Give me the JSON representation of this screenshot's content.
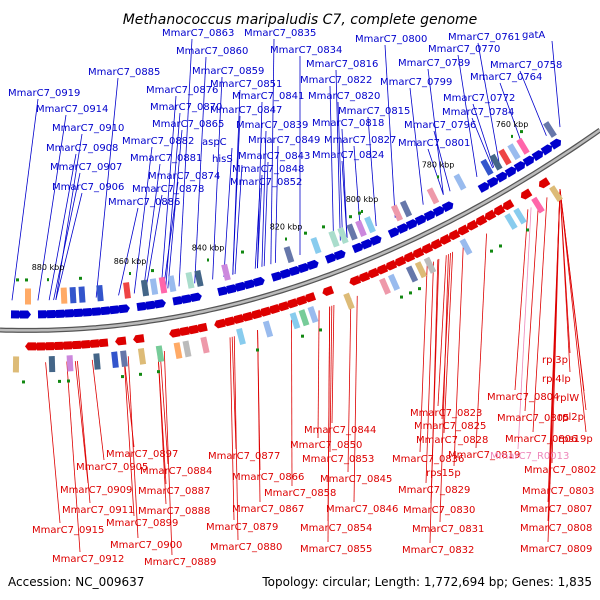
{
  "title": "Methanococcus maripaludis C7, complete genome",
  "footer": {
    "accession": "Accession: NC_009637",
    "summary": "Topology: circular; Length: 1,772,694 bp; Genes: 1,835"
  },
  "colors": {
    "forward": "#0000cc",
    "reverse": "#dd0000",
    "rna": "#ee88bb",
    "backbone": "#888888",
    "tick": "#118811"
  },
  "ticks": [
    "880 kbp",
    "860 kbp",
    "840 kbp",
    "820 kbp",
    "800 kbp",
    "780 kbp",
    "760 kbp"
  ],
  "top_labels": [
    "MmarC7_0863",
    "MmarC7_0835",
    "MmarC7_0800",
    "MmarC7_0761",
    "gatA",
    "MmarC7_0860",
    "MmarC7_0834",
    "MmarC7_0770",
    "MmarC7_0885",
    "MmarC7_0859",
    "MmarC7_0816",
    "MmarC7_0789",
    "MmarC7_0758",
    "MmarC7_0876",
    "MmarC7_0851",
    "MmarC7_0822",
    "MmarC7_0799",
    "MmarC7_0764",
    "MmarC7_0919",
    "MmarC7_0841",
    "MmarC7_0820",
    "MmarC7_0772",
    "MmarC7_0870",
    "MmarC7_0847",
    "MmarC7_0815",
    "MmarC7_0784",
    "MmarC7_0914",
    "MmarC7_0865",
    "MmarC7_0839",
    "MmarC7_0818",
    "MmarC7_0796",
    "MmarC7_0910",
    "MmarC7_0882",
    "aspC",
    "MmarC7_0849",
    "MmarC7_0827",
    "MmarC7_0801",
    "MmarC7_0908",
    "MmarC7_0881",
    "hisS",
    "MmarC7_0843",
    "MmarC7_0824",
    "MmarC7_0907",
    "MmarC7_0874",
    "MmarC7_0848",
    "MmarC7_0906",
    "MmarC7_0878",
    "MmarC7_0852",
    "MmarC7_0886"
  ],
  "bottom_labels": [
    "rpl3p",
    "rpl4lp",
    "MmarC7_0804",
    "rplW",
    "MmarC7_0823",
    "MmarC7_0805",
    "rpl2p",
    "MmarC7_0844",
    "MmarC7_0825",
    "MmarC7_0806",
    "rps19p",
    "MmarC7_0850",
    "MmarC7_0828",
    "MmarC7_0819",
    "MmarC7_0897",
    "MmarC7_0877",
    "MmarC7_0853",
    "MmarC7_0836",
    "MmarC7_R0013",
    "MmarC7_0905",
    "MmarC7_0884",
    "MmarC7_0866",
    "MmarC7_0845",
    "rps15p",
    "MmarC7_0802",
    "MmarC7_0909",
    "MmarC7_0887",
    "MmarC7_0858",
    "MmarC7_0829",
    "MmarC7_0803",
    "MmarC7_0911",
    "MmarC7_0888",
    "MmarC7_0867",
    "MmarC7_0846",
    "MmarC7_0830",
    "MmarC7_0807",
    "MmarC7_0915",
    "MmarC7_0899",
    "MmarC7_0879",
    "MmarC7_0854",
    "MmarC7_0831",
    "MmarC7_0808",
    "MmarC7_0900",
    "MmarC7_0880",
    "MmarC7_0855",
    "MmarC7_0832",
    "MmarC7_0809",
    "MmarC7_0912",
    "MmarC7_0889"
  ]
}
